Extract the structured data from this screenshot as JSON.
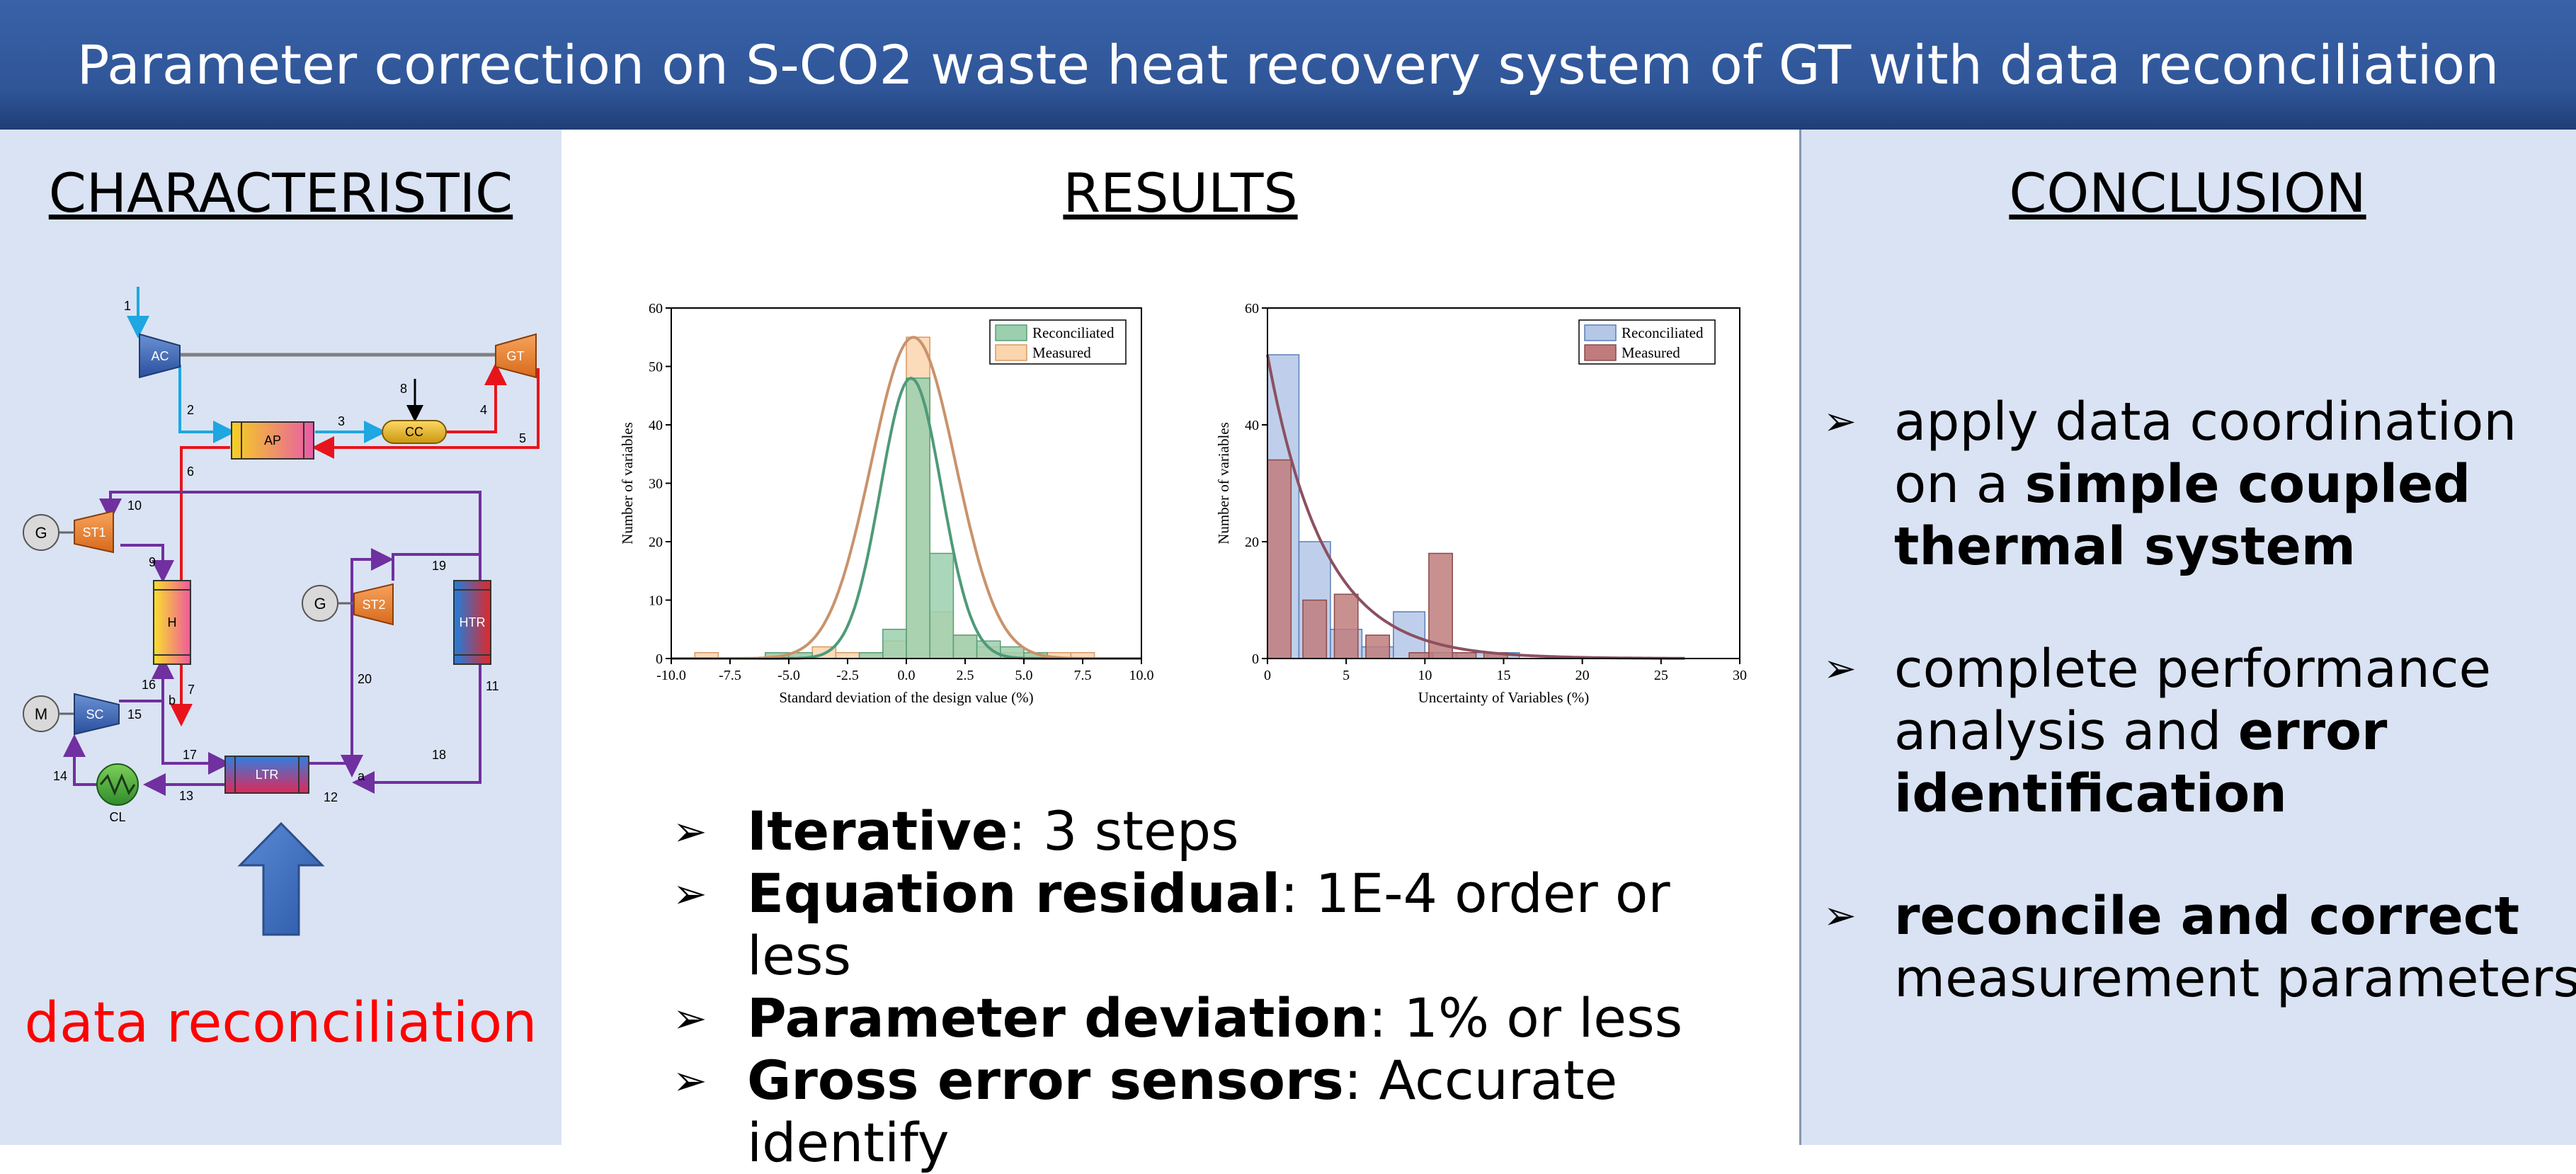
{
  "title": "Parameter correction on S-CO2 waste heat recovery system of GT with data reconciliation",
  "colors": {
    "banner": "#2f5597",
    "side_panel": "#dae3f3",
    "accent_red": "#ff0000",
    "pipe_blue": "#1ea7e1",
    "pipe_red": "#e8141c",
    "pipe_purple": "#7030a0",
    "reconciled_fill": "#9bcfae",
    "measured_fill": "#fad5ae",
    "reconciled_blue": "#b4c7e7",
    "measured_red": "#c07c7c"
  },
  "left": {
    "heading": "CHARACTERISTIC",
    "components": {
      "ac": "AC",
      "gt": "GT",
      "ap": "AP",
      "cc": "CC",
      "st1": "ST1",
      "st2": "ST2",
      "h": "H",
      "htr": "HTR",
      "sc": "SC",
      "ltr": "LTR",
      "cl": "CL",
      "g1": "G",
      "g2": "G",
      "m": "M"
    },
    "stream_labels": [
      "1",
      "2",
      "3",
      "4",
      "5",
      "6",
      "7",
      "8",
      "9",
      "10",
      "11",
      "12",
      "13",
      "14",
      "15",
      "16",
      "17",
      "18",
      "19",
      "20",
      "a",
      "b"
    ],
    "footer": "data reconciliation"
  },
  "middle": {
    "heading": "RESULTS",
    "bullets": [
      {
        "bold": "Iterative",
        "rest": ": 3 steps"
      },
      {
        "bold": "Equation residual",
        "rest": ": 1E-4 order or less"
      },
      {
        "bold": "Parameter deviation",
        "rest": ": 1% or less"
      },
      {
        "bold": "Gross error sensors",
        "rest": ": Accurate identify"
      }
    ]
  },
  "right": {
    "heading": "CONCLUSION",
    "bullets": [
      {
        "lines": [
          [
            {
              "t": "apply data coordination",
              "b": false
            }
          ],
          [
            {
              "t": "on a ",
              "b": false
            },
            {
              "t": "simple coupled",
              "b": true
            }
          ],
          [
            {
              "t": "thermal system",
              "b": true
            }
          ]
        ]
      },
      {
        "lines": [
          [
            {
              "t": "complete performance",
              "b": false
            }
          ],
          [
            {
              "t": "analysis and ",
              "b": false
            },
            {
              "t": "error",
              "b": true
            }
          ],
          [
            {
              "t": "identification",
              "b": true
            }
          ]
        ]
      },
      {
        "lines": [
          [
            {
              "t": "reconcile and correct",
              "b": true
            }
          ],
          [
            {
              "t": "measurement parameters",
              "b": false
            }
          ]
        ]
      }
    ]
  },
  "chart_data": [
    {
      "type": "bar",
      "xlabel": "Standard deviation of the design value (%)",
      "ylabel": "Number of variables",
      "xlim": [
        -10,
        10
      ],
      "ylim": [
        0,
        60
      ],
      "xticks": [
        "-10.0",
        "-7.5",
        "-5.0",
        "-2.5",
        "0.0",
        "2.5",
        "5.0",
        "7.5",
        "10.0"
      ],
      "yticks": [
        "0",
        "10",
        "20",
        "30",
        "40",
        "50",
        "60"
      ],
      "legend_position": "top-right",
      "bin_width": 1,
      "series": [
        {
          "name": "Reconciliated",
          "bins": [
            -5.5,
            -4.5,
            -3.5,
            -2.5,
            -1.5,
            -0.5,
            0.5,
            1.5,
            2.5,
            3.5,
            4.5,
            5.5,
            6.5,
            7.5
          ],
          "values": [
            1,
            1,
            0,
            0,
            1,
            5,
            48,
            18,
            4,
            3,
            2,
            1,
            0,
            0
          ],
          "curve": {
            "mean": 0.2,
            "sd": 1.3,
            "peak": 48
          }
        },
        {
          "name": "Measured",
          "bins": [
            -8.5,
            -5.5,
            -4.5,
            -3.5,
            -2.5,
            -1.5,
            -0.5,
            0.5,
            1.5,
            2.5,
            3.5,
            4.5,
            5.5,
            6.5,
            7.5
          ],
          "values": [
            1,
            1,
            1,
            2,
            1,
            1,
            3,
            55,
            8,
            4,
            2,
            1,
            1,
            1,
            1
          ],
          "curve": {
            "mean": 0.3,
            "sd": 1.8,
            "peak": 55
          }
        }
      ]
    },
    {
      "type": "bar",
      "xlabel": "Uncertainty of Variables (%)",
      "ylabel": "Number of variables",
      "xlim": [
        0,
        30
      ],
      "ylim": [
        0,
        60
      ],
      "xticks": [
        "0",
        "5",
        "10",
        "15",
        "20",
        "25",
        "30"
      ],
      "yticks": [
        "0",
        "20",
        "40",
        "60"
      ],
      "legend_position": "top-right",
      "series": [
        {
          "name": "Reconciliated",
          "bin_width": 2,
          "bins": [
            1,
            3,
            5,
            7,
            9,
            11,
            13,
            15
          ],
          "values": [
            52,
            20,
            5,
            2,
            8,
            1,
            1,
            1
          ]
        },
        {
          "name": "Measured",
          "bin_width": 1.5,
          "bins": [
            0.75,
            3,
            5,
            7,
            9.75,
            11,
            12.5,
            14.5
          ],
          "values": [
            34,
            10,
            11,
            4,
            1,
            18,
            1,
            1
          ]
        }
      ],
      "curve": {
        "type": "exponential",
        "a": 52,
        "k": 0.28,
        "x_end": 26.5
      }
    }
  ]
}
